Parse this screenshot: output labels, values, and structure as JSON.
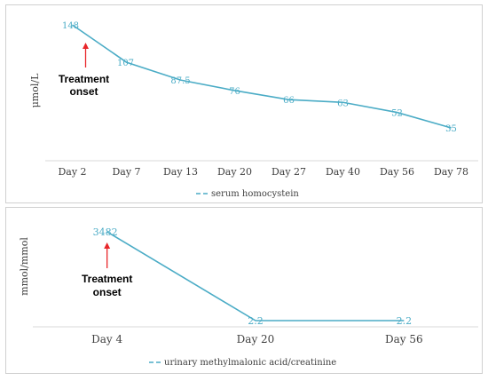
{
  "chart_data": [
    {
      "type": "line",
      "ylabel": "μmol/L",
      "categories": [
        "Day 2",
        "Day 7",
        "Day 13",
        "Day 20",
        "Day 27",
        "Day 40",
        "Day 56",
        "Day 78"
      ],
      "series": [
        {
          "name": "serum homocystein",
          "values": [
            148,
            107,
            87.5,
            76,
            66,
            63,
            52,
            35
          ],
          "labels": [
            "148",
            "107",
            "87.5",
            "76",
            "66",
            "63",
            "52",
            "35"
          ]
        }
      ],
      "annotation": {
        "line1": "Treatment",
        "line2": "onset",
        "category_index": 0
      },
      "legend": "bottom",
      "grid": false,
      "color": "#4bacc6",
      "arrow_color": "#e8262a"
    },
    {
      "type": "line",
      "ylabel": "mmol/mmol",
      "categories": [
        "Day 4",
        "Day 20",
        "Day 56"
      ],
      "series": [
        {
          "name": "urinary methylmalonic acid/creatinine",
          "values": [
            3482,
            2.2,
            2.2
          ],
          "labels": [
            "3482",
            "2.2",
            "2.2"
          ]
        }
      ],
      "annotation": {
        "line1": "Treatment",
        "line2": "onset",
        "category_index": 0
      },
      "legend": "bottom",
      "grid": false,
      "color": "#4bacc6",
      "arrow_color": "#e8262a"
    }
  ]
}
